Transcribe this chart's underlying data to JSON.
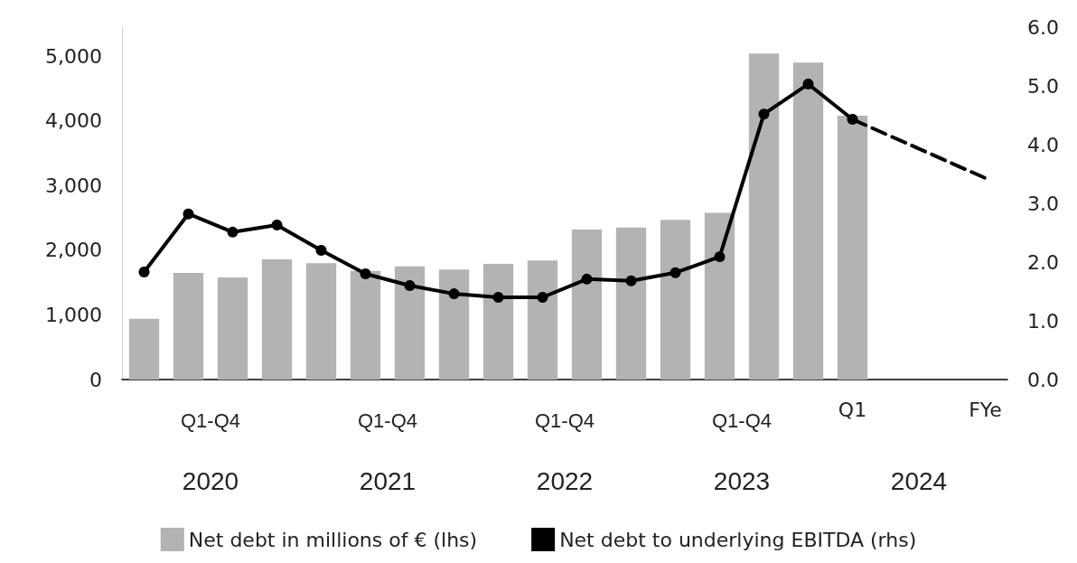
{
  "chart_data": {
    "type": "bar",
    "categories": [
      null,
      null,
      null,
      null,
      null,
      null,
      null,
      null,
      null,
      null,
      null,
      null,
      null,
      null,
      null,
      null,
      "Q1",
      null,
      null,
      "FYe"
    ],
    "series": [
      {
        "name": "Net debt in millions of € (lhs)",
        "color": "#b3b3b3",
        "values": [
          940,
          1650,
          1580,
          1860,
          1800,
          1680,
          1750,
          1700,
          1790,
          1840,
          2320,
          2350,
          2470,
          2580,
          5040,
          4900,
          4080,
          null,
          null,
          null
        ]
      },
      {
        "name": "Net debt to underlying EBITDA (rhs)",
        "type": "line",
        "axis": "y2",
        "color": "#000000",
        "marker": "circle",
        "line_style": "solid",
        "values": [
          1.83,
          2.82,
          2.51,
          2.63,
          2.2,
          1.8,
          1.6,
          1.46,
          1.4,
          1.4,
          1.71,
          1.68,
          1.82,
          2.09,
          4.52,
          5.03,
          4.43,
          null,
          null,
          null
        ]
      },
      {
        "type": "line",
        "axis": "y2",
        "color": "#000000",
        "marker": "none",
        "line_style": "dashed",
        "values": [
          null,
          null,
          null,
          null,
          null,
          null,
          null,
          null,
          null,
          null,
          null,
          null,
          null,
          null,
          null,
          null,
          4.43,
          null,
          null,
          3.43
        ]
      }
    ],
    "ylim": [
      0,
      5450
    ],
    "yticks": [
      0,
      {
        "value": 1000,
        "label": "1,000"
      },
      {
        "value": 2000,
        "label": "2,000"
      },
      {
        "value": 3000,
        "label": "3,000"
      },
      {
        "value": 4000,
        "label": "4,000"
      },
      {
        "value": 5000,
        "label": "5,000"
      }
    ],
    "y2lim": [
      0,
      6
    ],
    "y2ticks": [
      {
        "value": 0,
        "label": "0.0"
      },
      {
        "value": 1,
        "label": "1.0"
      },
      {
        "value": 2,
        "label": "2.0"
      },
      {
        "value": 3,
        "label": "3.0"
      },
      {
        "value": 4,
        "label": "4.0"
      },
      {
        "value": 5,
        "label": "5.0"
      },
      {
        "value": 6,
        "label": "6.0"
      }
    ],
    "annotations": [
      "Q1-Q4",
      "Q1-Q4",
      "Q1-Q4",
      "Q1-Q4",
      "2020",
      "2021",
      "2022",
      "2023",
      "2024"
    ],
    "grid": false,
    "legend": "bottom"
  }
}
